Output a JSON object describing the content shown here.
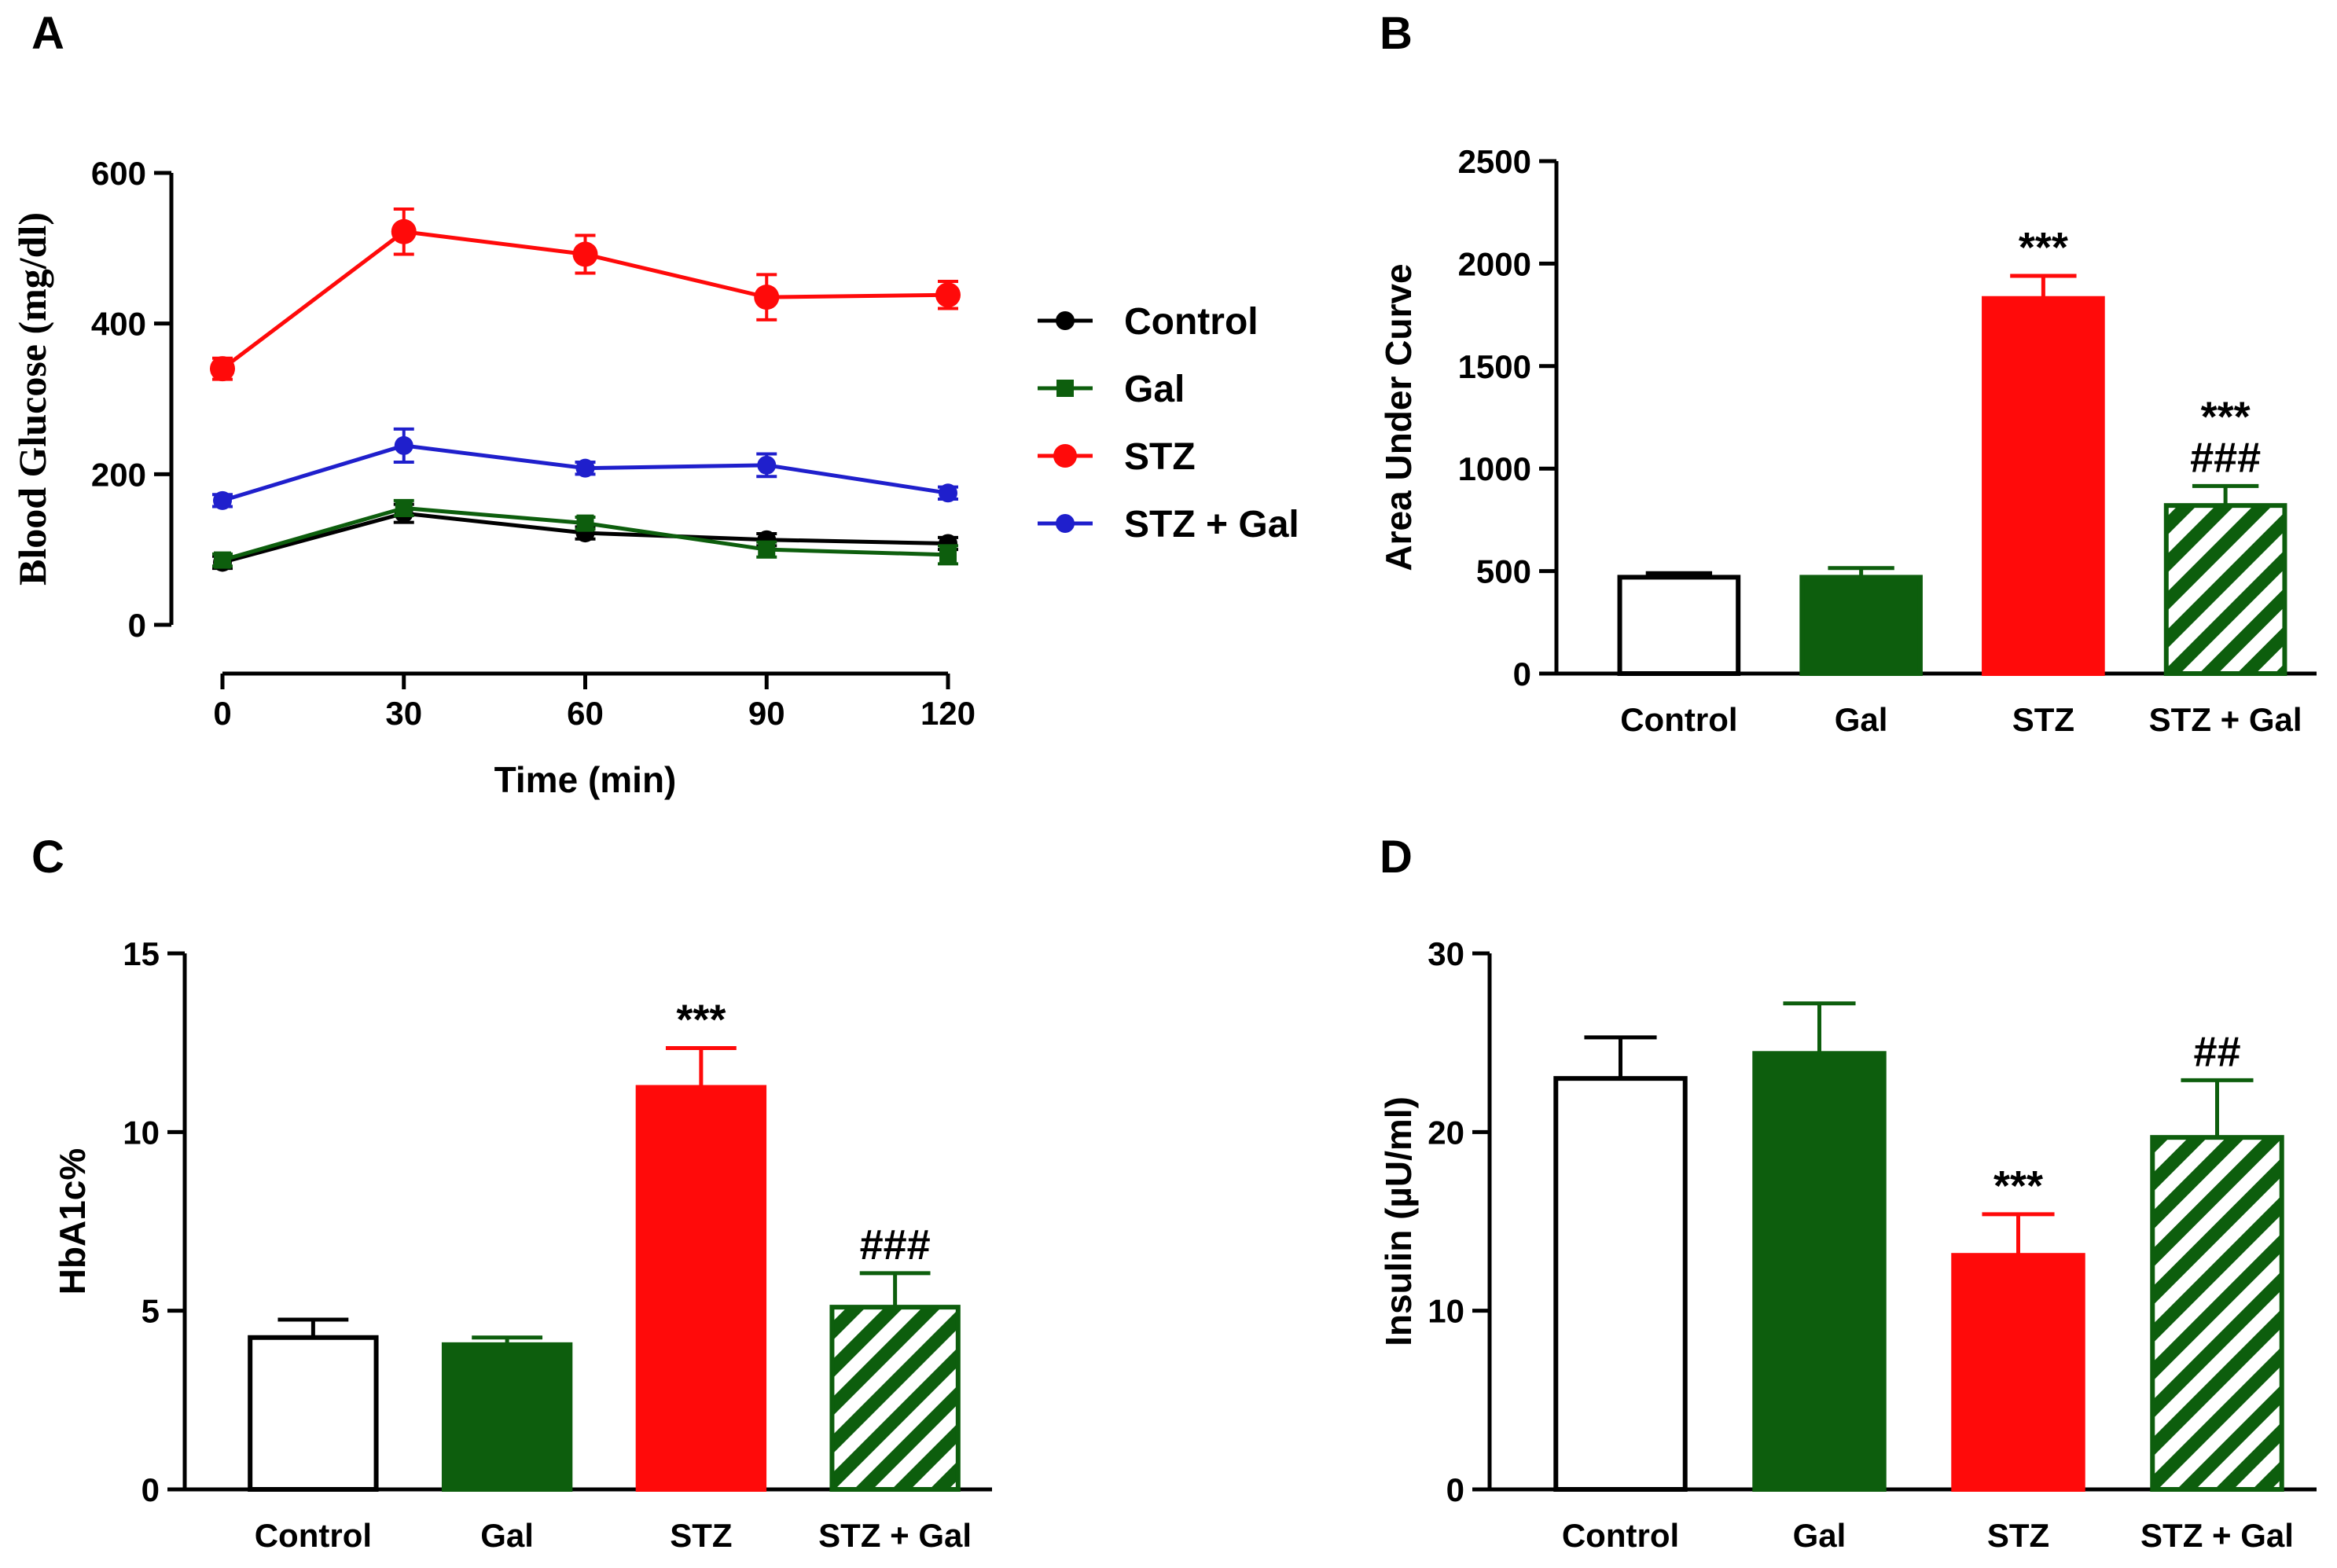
{
  "colors": {
    "control": "#000000",
    "gal": "#0d5e0d",
    "stz": "#ff0a0a",
    "stz_gal": "#1f1fcc",
    "stz_gal_bar": "#0d5e0d"
  },
  "chart_data": [
    {
      "id": "A",
      "panel": "A",
      "type": "line",
      "title": "",
      "xlabel": "Time (min)",
      "ylabel": "Blood Glucose (mg/dl)",
      "x": [
        0,
        30,
        60,
        90,
        120
      ],
      "x_tick_labels": [
        "0",
        "30",
        "60",
        "90",
        "120"
      ],
      "xlim": [
        0,
        120
      ],
      "ylim": [
        0,
        600
      ],
      "y_ticks": [
        0,
        200,
        400,
        600
      ],
      "y_tick_labels": [
        "0",
        "200",
        "400",
        "600"
      ],
      "grid": false,
      "legend_position": "right",
      "series": [
        {
          "key": "control",
          "name": "Control",
          "marker": "circle",
          "values": [
            83,
            148,
            122,
            113,
            108
          ],
          "errors": [
            8,
            12,
            8,
            8,
            8
          ]
        },
        {
          "key": "gal",
          "name": "Gal",
          "marker": "square",
          "values": [
            86,
            155,
            135,
            100,
            93
          ],
          "errors": [
            8,
            10,
            8,
            10,
            12
          ]
        },
        {
          "key": "stz",
          "name": "STZ",
          "marker": "circle",
          "values": [
            340,
            522,
            492,
            435,
            438
          ],
          "errors": [
            14,
            30,
            25,
            30,
            18
          ]
        },
        {
          "key": "stz_gal",
          "name": "STZ + Gal",
          "marker": "circle",
          "values": [
            165,
            238,
            208,
            212,
            175
          ],
          "errors": [
            8,
            22,
            8,
            15,
            8
          ]
        }
      ]
    },
    {
      "id": "B",
      "panel": "B",
      "type": "bar",
      "title": "",
      "xlabel": "",
      "ylabel": "Area Under Curve",
      "categories": [
        "Control",
        "Gal",
        "STZ",
        "STZ + Gal"
      ],
      "bar_keys": [
        "control",
        "gal",
        "stz",
        "stz_gal_bar"
      ],
      "values": [
        470,
        470,
        1830,
        820
      ],
      "errors": [
        20,
        45,
        110,
        95
      ],
      "annotations": [
        [],
        [],
        [
          "***"
        ],
        [
          "***",
          "###"
        ]
      ],
      "ylim": [
        0,
        2500
      ],
      "y_ticks": [
        0,
        500,
        1000,
        1500,
        2000,
        2500
      ],
      "y_tick_labels": [
        "0",
        "500",
        "1000",
        "1500",
        "2000",
        "2500"
      ],
      "grid": false
    },
    {
      "id": "C",
      "panel": "C",
      "type": "bar",
      "title": "",
      "xlabel": "",
      "ylabel": "HbA1c%",
      "categories": [
        "Control",
        "Gal",
        "STZ",
        "STZ + Gal"
      ],
      "bar_keys": [
        "control",
        "gal",
        "stz",
        "stz_gal_bar"
      ],
      "values": [
        4.25,
        4.05,
        11.25,
        5.1
      ],
      "errors": [
        0.5,
        0.2,
        1.1,
        0.95
      ],
      "annotations": [
        [],
        [],
        [
          "***"
        ],
        [
          "###"
        ]
      ],
      "ylim": [
        0,
        15
      ],
      "y_ticks": [
        0,
        5,
        10,
        15
      ],
      "y_tick_labels": [
        "0",
        "5",
        "10",
        "15"
      ],
      "grid": false
    },
    {
      "id": "D",
      "panel": "D",
      "type": "bar",
      "title": "",
      "xlabel": "",
      "ylabel": "Insulin (µU/ml)",
      "categories": [
        "Control",
        "Gal",
        "STZ",
        "STZ + Gal"
      ],
      "bar_keys": [
        "control",
        "gal",
        "stz",
        "stz_gal_bar"
      ],
      "values": [
        23,
        24.4,
        13.1,
        19.7
      ],
      "errors": [
        2.3,
        2.8,
        2.3,
        3.2
      ],
      "annotations": [
        [],
        [],
        [
          "***"
        ],
        [
          "##"
        ]
      ],
      "ylim": [
        0,
        30
      ],
      "y_ticks": [
        0,
        10,
        20,
        30
      ],
      "y_tick_labels": [
        "0",
        "10",
        "20",
        "30"
      ],
      "grid": false
    }
  ]
}
